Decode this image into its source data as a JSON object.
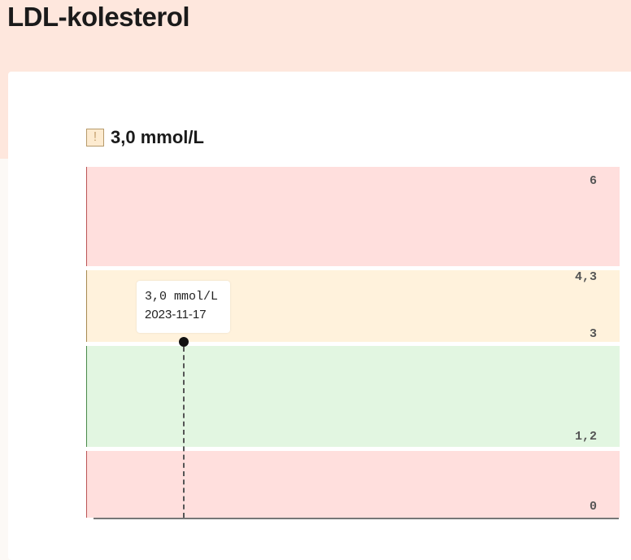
{
  "page": {
    "title": "LDL-kolesterol"
  },
  "latest": {
    "value": "3,0 mmol/L",
    "status_icon": "warning-exclamation-icon"
  },
  "chart_data": {
    "type": "scatter",
    "bands": [
      {
        "from": 4.3,
        "to": 6,
        "status": "high",
        "color": "#ffdfdd"
      },
      {
        "from": 3,
        "to": 4.3,
        "status": "borderline",
        "color": "#fff2dc"
      },
      {
        "from": 1.2,
        "to": 3,
        "status": "normal",
        "color": "#e2f6e1"
      },
      {
        "from": 0,
        "to": 1.2,
        "status": "low",
        "color": "#ffdfdd"
      }
    ],
    "tick_labels": [
      "6",
      "4,3",
      "3",
      "1,2",
      "0"
    ],
    "points": [
      {
        "x": "2023-11-17",
        "y": 3.0
      }
    ],
    "tooltip": {
      "value": "3,0 mmol/L",
      "date": "2023-11-17"
    }
  }
}
